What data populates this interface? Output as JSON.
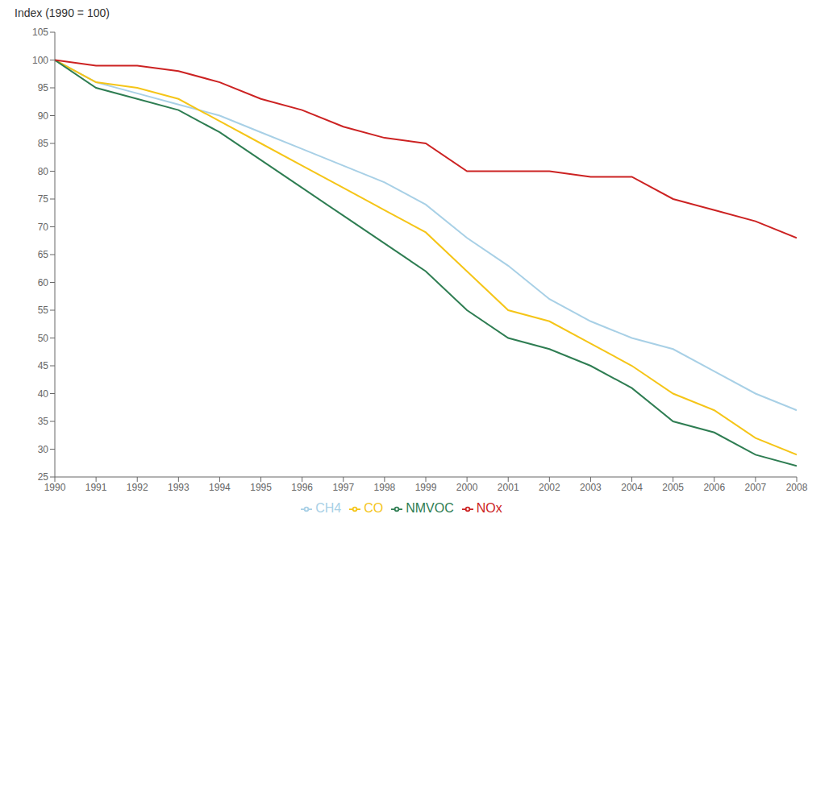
{
  "chart_data": {
    "type": "line",
    "y_label": "Index (1990 = 100)",
    "x": [
      1990,
      1991,
      1992,
      1993,
      1994,
      1995,
      1996,
      1997,
      1998,
      1999,
      2000,
      2001,
      2002,
      2003,
      2004,
      2005,
      2006,
      2007,
      2008
    ],
    "series": [
      {
        "name": "CH4",
        "color": "#a8d0e6",
        "values": [
          100,
          96,
          94,
          92,
          90,
          87,
          84,
          81,
          78,
          74,
          68,
          63,
          57,
          53,
          50,
          48,
          44,
          40,
          37
        ]
      },
      {
        "name": "CO",
        "color": "#f5c518",
        "values": [
          100,
          96,
          95,
          93,
          89,
          85,
          81,
          77,
          73,
          69,
          62,
          55,
          53,
          49,
          45,
          40,
          37,
          32,
          29
        ]
      },
      {
        "name": "NMVOC",
        "color": "#2e7d52",
        "values": [
          100,
          95,
          93,
          91,
          87,
          82,
          77,
          72,
          67,
          62,
          55,
          50,
          48,
          45,
          41,
          35,
          33,
          29,
          27
        ]
      },
      {
        "name": "NOx",
        "color": "#cc2222",
        "values": [
          100,
          99,
          99,
          98,
          96,
          93,
          91,
          88,
          86,
          85,
          80,
          80,
          80,
          79,
          79,
          75,
          73,
          71,
          68
        ]
      }
    ],
    "xlim": [
      1990,
      2008
    ],
    "xticks": [
      1990,
      1991,
      1992,
      1993,
      1994,
      1995,
      1996,
      1997,
      1998,
      1999,
      2000,
      2001,
      2002,
      2003,
      2004,
      2005,
      2006,
      2007,
      2008
    ],
    "ylim": [
      25,
      105
    ],
    "yticks": [
      25,
      30,
      35,
      40,
      45,
      50,
      55,
      60,
      65,
      70,
      75,
      80,
      85,
      90,
      95,
      100,
      105
    ],
    "grid": false,
    "legend": "bottom"
  }
}
